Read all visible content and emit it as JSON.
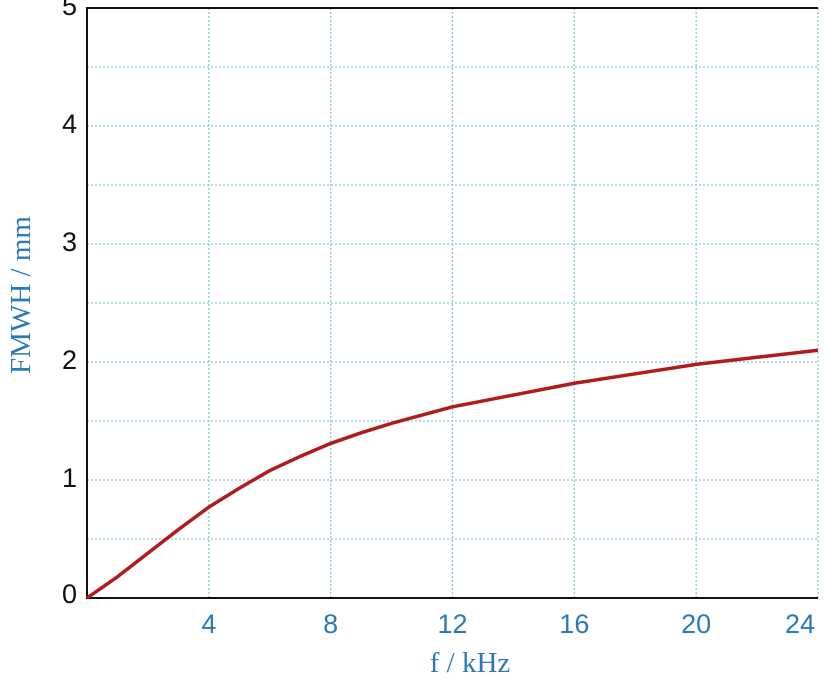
{
  "chart_data": {
    "type": "line",
    "x_label": "f / kHz",
    "y_label": "FMWH / mm",
    "x": [
      0,
      1,
      2,
      3,
      4,
      5,
      6,
      7,
      8,
      9,
      10,
      11,
      12,
      13,
      14,
      16,
      18,
      20,
      22,
      24
    ],
    "series": [
      {
        "color": "#b01c1c",
        "values": [
          0,
          0.18,
          0.38,
          0.58,
          0.77,
          0.93,
          1.08,
          1.2,
          1.31,
          1.4,
          1.48,
          1.55,
          1.62,
          1.67,
          1.72,
          1.82,
          1.9,
          1.98,
          2.04,
          2.1
        ]
      }
    ],
    "xlim": [
      0,
      24
    ],
    "ylim": [
      0,
      5
    ],
    "xticks": [
      4,
      8,
      12,
      16,
      20,
      24
    ],
    "yticks": [
      0,
      1,
      2,
      3,
      4,
      5
    ],
    "y_minor_grid": [
      0.5,
      1.5,
      2.5,
      3.5,
      4.5
    ],
    "grid": true,
    "grid_color": "#8cc8d8"
  }
}
